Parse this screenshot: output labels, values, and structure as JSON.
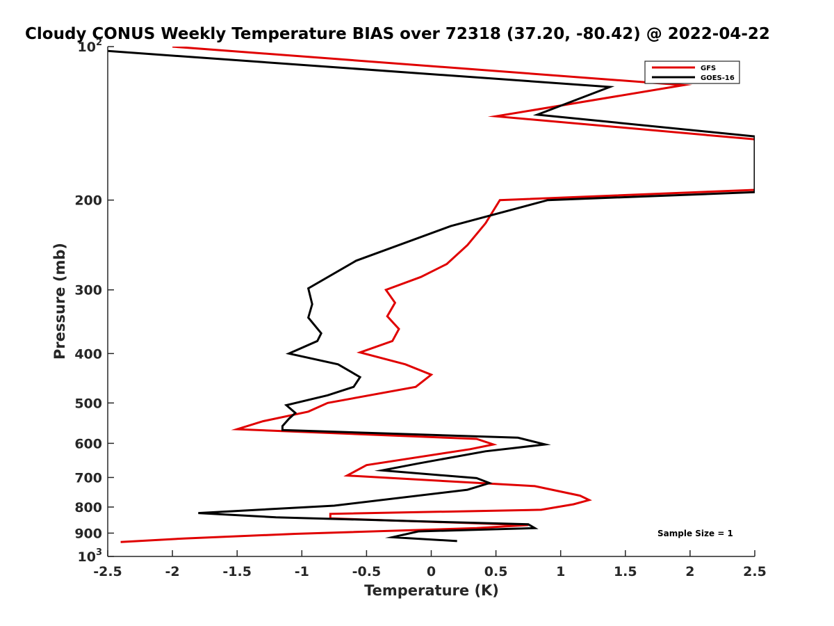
{
  "chart_data": {
    "type": "line",
    "title": "Cloudy CONUS Weekly Temperature BIAS over 72318 (37.20, -80.42) @ 2022-04-22",
    "xlabel": "Temperature (K)",
    "ylabel": "Pressure (mb)",
    "xlim": [
      -2.5,
      2.5
    ],
    "ylim": [
      100,
      1000
    ],
    "yscale": "log",
    "y_reversed": true,
    "grid": false,
    "legend_position": "top-right",
    "x_ticks": [
      "-2.5",
      "-2",
      "-1.5",
      "-1",
      "-0.5",
      "0",
      "0.5",
      "1",
      "1.5",
      "2",
      "2.5"
    ],
    "y_ticks": [
      {
        "value": 100,
        "base": "10",
        "exp": "2"
      },
      {
        "value": 200,
        "label": "200"
      },
      {
        "value": 300,
        "label": "300"
      },
      {
        "value": 400,
        "label": "400"
      },
      {
        "value": 500,
        "label": "500"
      },
      {
        "value": 600,
        "label": "600"
      },
      {
        "value": 700,
        "label": "700"
      },
      {
        "value": 800,
        "label": "800"
      },
      {
        "value": 900,
        "label": "900"
      },
      {
        "value": 1000,
        "base": "10",
        "exp": "3"
      }
    ],
    "annotation": "Sample Size = 1",
    "series": [
      {
        "name": "GFS",
        "color": "#e00000",
        "points": [
          [
            -2.0,
            100
          ],
          [
            1.95,
            119
          ],
          [
            0.5,
            137
          ],
          [
            2.5,
            152
          ],
          [
            2.5,
            191
          ],
          [
            0.53,
            200
          ],
          [
            0.42,
            222
          ],
          [
            0.28,
            245
          ],
          [
            0.12,
            267
          ],
          [
            -0.08,
            283
          ],
          [
            -0.35,
            300
          ],
          [
            -0.28,
            318
          ],
          [
            -0.34,
            338
          ],
          [
            -0.25,
            358
          ],
          [
            -0.3,
            378
          ],
          [
            -0.55,
            398
          ],
          [
            -0.2,
            420
          ],
          [
            0.0,
            440
          ],
          [
            -0.12,
            465
          ],
          [
            -0.8,
            500
          ],
          [
            -0.95,
            520
          ],
          [
            -1.3,
            543
          ],
          [
            -1.5,
            563
          ],
          [
            0.35,
            588
          ],
          [
            0.48,
            603
          ],
          [
            0.3,
            616
          ],
          [
            -0.5,
            662
          ],
          [
            -0.65,
            694
          ],
          [
            0.8,
            728
          ],
          [
            1.15,
            760
          ],
          [
            1.22,
            775
          ],
          [
            1.1,
            790
          ],
          [
            0.85,
            810
          ],
          [
            -0.78,
            825
          ],
          [
            -0.78,
            842
          ],
          [
            0.75,
            868
          ],
          [
            0.35,
            880
          ],
          [
            -1.05,
            903
          ],
          [
            -1.9,
            922
          ],
          [
            -2.4,
            937
          ]
        ]
      },
      {
        "name": "GOES-16",
        "color": "#000000",
        "points": [
          [
            -2.5,
            102
          ],
          [
            1.38,
            120
          ],
          [
            0.82,
            136
          ],
          [
            2.5,
            150
          ],
          [
            2.5,
            193
          ],
          [
            0.9,
            200
          ],
          [
            0.15,
            225
          ],
          [
            -0.25,
            245
          ],
          [
            -0.58,
            263
          ],
          [
            -0.95,
            298
          ],
          [
            -0.92,
            320
          ],
          [
            -0.95,
            340
          ],
          [
            -0.85,
            365
          ],
          [
            -0.88,
            378
          ],
          [
            -1.1,
            400
          ],
          [
            -0.72,
            420
          ],
          [
            -0.55,
            445
          ],
          [
            -0.6,
            465
          ],
          [
            -0.8,
            483
          ],
          [
            -1.12,
            505
          ],
          [
            -1.05,
            523
          ],
          [
            -1.1,
            537
          ],
          [
            -1.15,
            555
          ],
          [
            -1.15,
            565
          ],
          [
            0.67,
            585
          ],
          [
            0.88,
            603
          ],
          [
            0.42,
            622
          ],
          [
            -0.1,
            657
          ],
          [
            -0.38,
            678
          ],
          [
            0.35,
            702
          ],
          [
            0.45,
            718
          ],
          [
            0.28,
            740
          ],
          [
            -0.75,
            795
          ],
          [
            -1.8,
            822
          ],
          [
            -1.2,
            838
          ],
          [
            0.75,
            865
          ],
          [
            0.8,
            880
          ],
          [
            -0.1,
            893
          ],
          [
            -0.3,
            917
          ],
          [
            0.2,
            933
          ]
        ]
      }
    ]
  }
}
